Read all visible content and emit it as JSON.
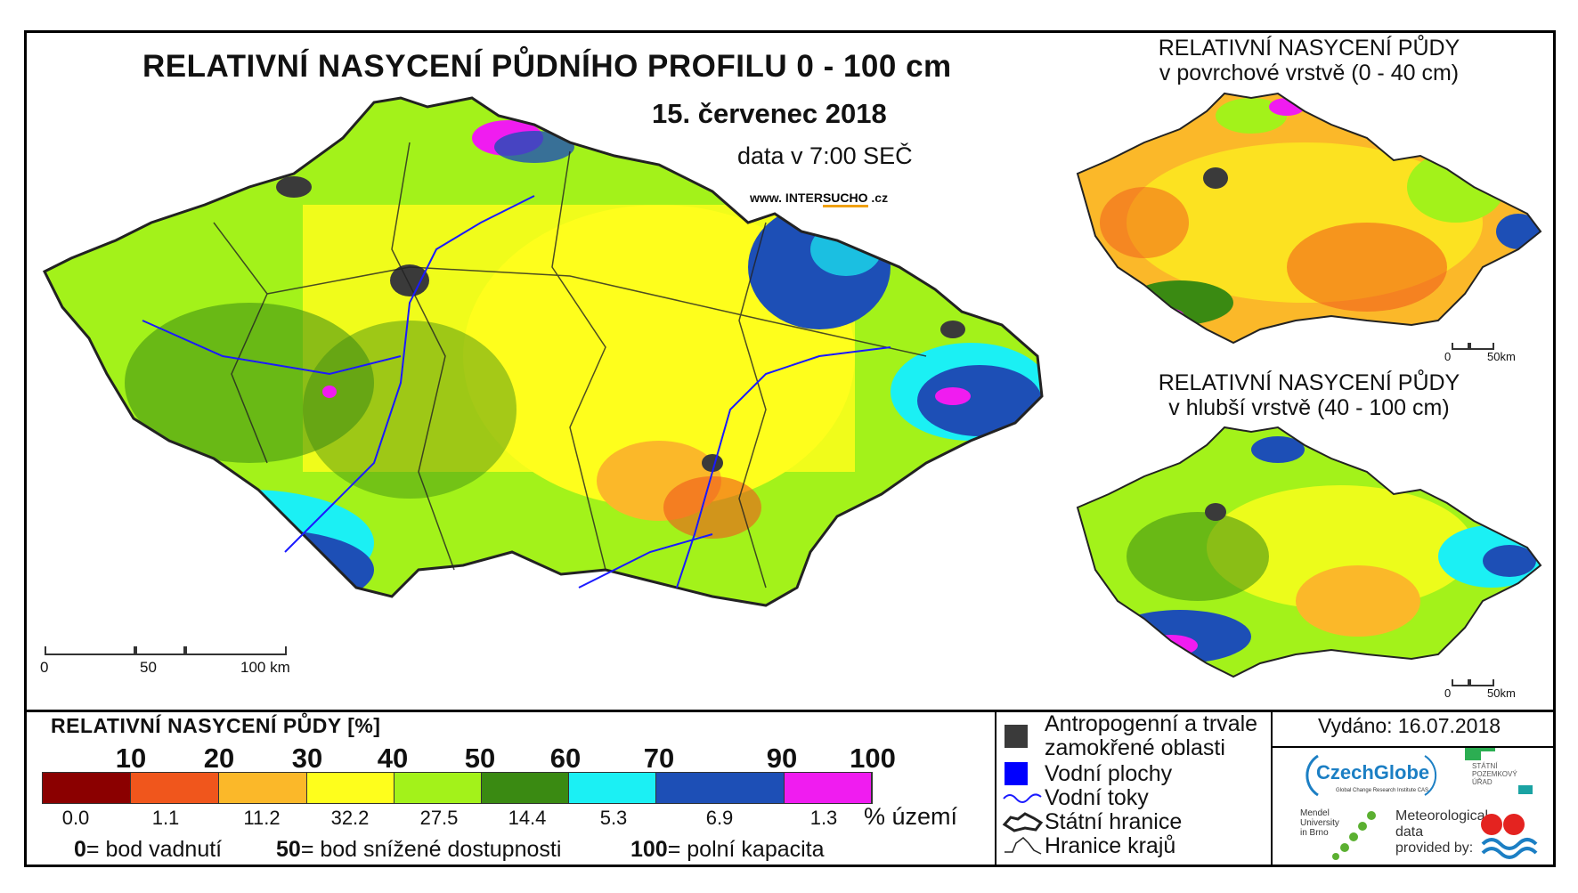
{
  "header": {
    "title": "RELATIVNÍ NASYCENÍ PŮDNÍHO PROFILU 0 - 100 cm",
    "date": "15. červenec 2018",
    "data_time": "data v 7:00 SEČ",
    "website_prefix": "www. INTER",
    "website_accent": "SUCHO",
    "website_suffix": " .cz"
  },
  "insets": {
    "surface_title_line1": "RELATIVNÍ NASYCENÍ PŮDY",
    "surface_title_line2": "v povrchové vrstvě (0 - 40 cm)",
    "deep_title_line1": "RELATIVNÍ NASYCENÍ PŮDY",
    "deep_title_line2": "v hlubší vrstvě (40 - 100 cm)",
    "scale_zero": "0",
    "scale_label": "50km"
  },
  "main_scale": {
    "tick_0": "0",
    "tick_50": "50",
    "tick_100": "100 km"
  },
  "legend": {
    "title": "RELATIVNÍ NASYCENÍ PŮDY [%]",
    "thresholds": [
      "10",
      "20",
      "30",
      "40",
      "50",
      "60",
      "70",
      "90",
      "100"
    ],
    "classes": [
      {
        "color": "#8b0000",
        "pct": "0.0"
      },
      {
        "color": "#f0561c",
        "pct": "1.1"
      },
      {
        "color": "#fbb829",
        "pct": "11.2"
      },
      {
        "color": "#fefe1c",
        "pct": "32.2"
      },
      {
        "color": "#a3f21a",
        "pct": "27.5"
      },
      {
        "color": "#3a8a12",
        "pct": "14.4"
      },
      {
        "color": "#1bf0f4",
        "pct": "5.3"
      },
      {
        "color": "#1d4fb6",
        "pct": "6.9"
      },
      {
        "color": "#f01cf0",
        "pct": "1.3"
      }
    ],
    "unit": "% území",
    "note_0_num": "0",
    "note_0_text": "= bod vadnutí",
    "note_50_num": "50",
    "note_50_text": "= bod snížené dostupnosti",
    "note_100_num": "100",
    "note_100_text": "= polní kapacita"
  },
  "symbols": {
    "urban_line1": "Antropogenní a trvale",
    "urban_line2": "zamokřené oblasti",
    "water": "Vodní plochy",
    "rivers": "Vodní toky",
    "border": "Státní hranice",
    "regions": "Hranice krajů",
    "colors": {
      "urban": "#3a3a3a",
      "water": "#0000ff",
      "river": "#1a1aff"
    }
  },
  "footer": {
    "issued": "Vydáno: 16.07.2018",
    "czechglobe": "CzechGlobe",
    "czechglobe_sub": "Global Change Research Institute CAS",
    "mendel_line1": "Mendel",
    "mendel_line2": "University",
    "mendel_line3": "in Brno",
    "spu_line1": "STÁTNÍ",
    "spu_line2": "POZEMKOVÝ",
    "spu_line3": "ÚŘAD",
    "meteo_line1": "Meteorological",
    "meteo_line2": "data",
    "meteo_line3": "provided by:"
  }
}
